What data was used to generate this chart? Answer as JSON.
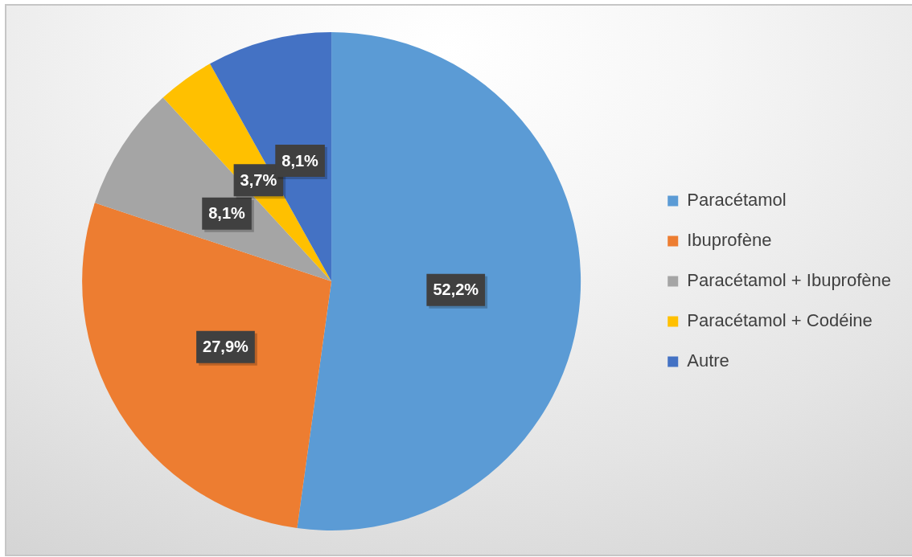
{
  "chart_data": {
    "type": "pie",
    "categories": [
      "Paracétamol",
      "Ibuprofène",
      "Paracétamol + Ibuprofène",
      "Paracétamol + Codéine",
      "Autre"
    ],
    "values": [
      52.2,
      27.9,
      8.1,
      3.7,
      8.1
    ],
    "colors": [
      "#5b9bd5",
      "#ed7d31",
      "#a5a5a5",
      "#ffc000",
      "#4472c4"
    ],
    "value_labels": [
      "52,2%",
      "27,9%",
      "8,1%",
      "3,7%",
      "8,1%"
    ],
    "legend": "right"
  }
}
